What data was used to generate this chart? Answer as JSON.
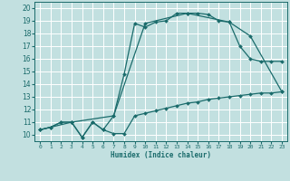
{
  "xlabel": "Humidex (Indice chaleur)",
  "bg_color": "#c2e0e0",
  "line_color": "#1a6b6b",
  "grid_color": "#ffffff",
  "xlim": [
    -0.5,
    23.5
  ],
  "ylim": [
    9.5,
    20.5
  ],
  "xticks": [
    0,
    1,
    2,
    3,
    4,
    5,
    6,
    7,
    8,
    9,
    10,
    11,
    12,
    13,
    14,
    15,
    16,
    17,
    18,
    19,
    20,
    21,
    22,
    23
  ],
  "yticks": [
    10,
    11,
    12,
    13,
    14,
    15,
    16,
    17,
    18,
    19,
    20
  ],
  "line1_x": [
    0,
    1,
    2,
    3,
    4,
    5,
    6,
    7,
    8,
    9,
    10,
    11,
    12,
    13,
    14,
    15,
    16,
    17,
    18,
    19,
    20,
    21,
    22,
    23
  ],
  "line1_y": [
    10.4,
    10.6,
    11.0,
    11.0,
    9.8,
    11.0,
    10.4,
    10.1,
    10.1,
    11.5,
    11.7,
    11.9,
    12.1,
    12.3,
    12.5,
    12.6,
    12.8,
    12.9,
    13.0,
    13.1,
    13.2,
    13.3,
    13.3,
    13.4
  ],
  "line2_x": [
    0,
    1,
    2,
    3,
    4,
    5,
    6,
    7,
    8,
    9,
    10,
    11,
    12,
    13,
    14,
    15,
    16,
    17,
    18,
    19,
    20,
    21,
    22,
    23
  ],
  "line2_y": [
    10.4,
    10.6,
    11.0,
    11.0,
    9.8,
    11.0,
    10.4,
    11.5,
    14.8,
    18.8,
    18.5,
    18.9,
    19.0,
    19.6,
    19.6,
    19.6,
    19.5,
    19.0,
    18.9,
    17.0,
    16.0,
    15.8,
    15.8,
    15.8
  ],
  "line3_x": [
    0,
    3,
    7,
    10,
    14,
    18,
    20,
    23
  ],
  "line3_y": [
    10.4,
    11.0,
    11.5,
    18.8,
    19.6,
    18.9,
    17.8,
    13.4
  ]
}
